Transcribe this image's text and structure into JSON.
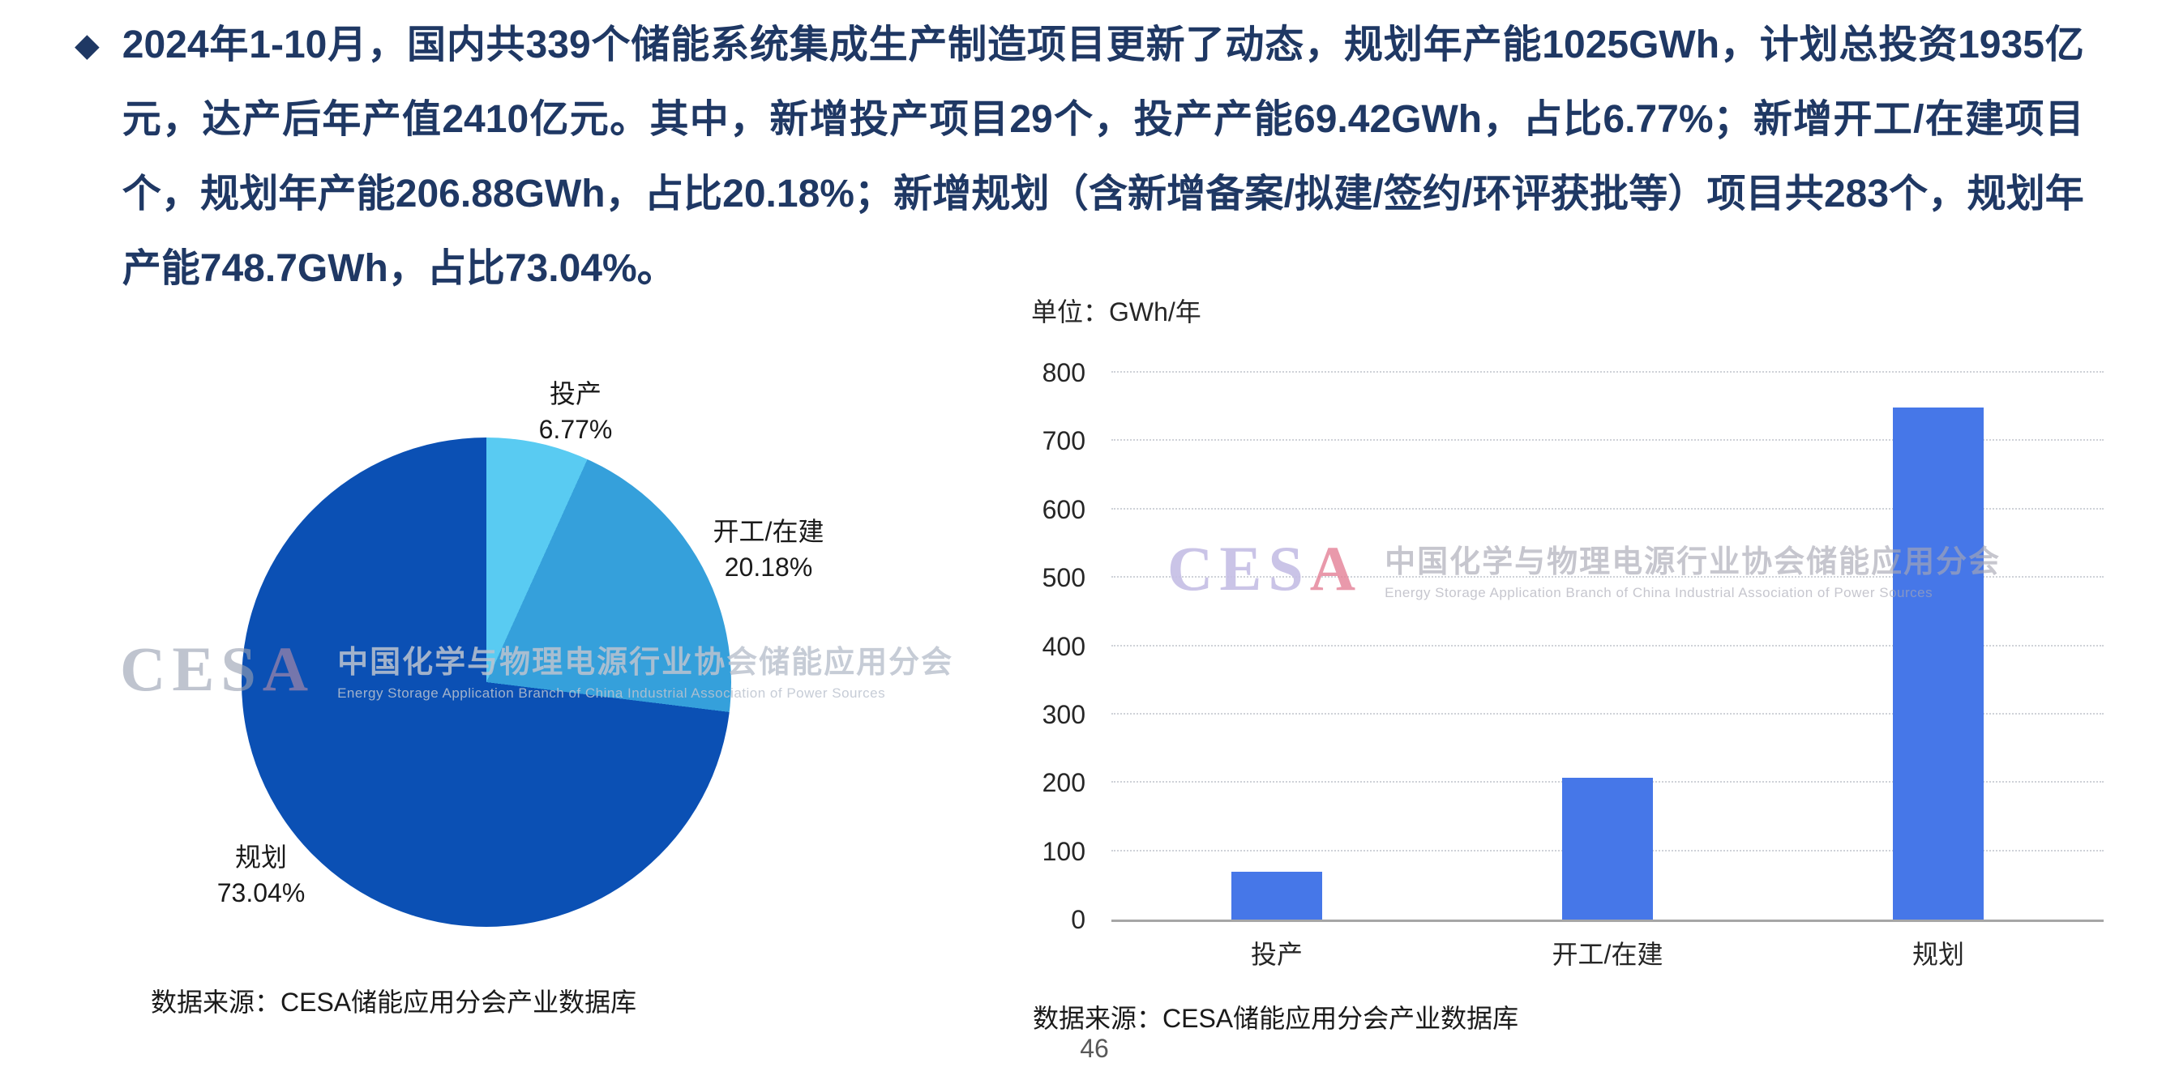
{
  "header": {
    "bullet": "◆",
    "text": "2024年1-10月，国内共339个储能系统集成生产制造项目更新了动态，规划年产能1025GWh，计划总投资1935亿元，达产后年产值2410亿元。其中，新增投产项目29个，投产产能69.42GWh，占比6.77%；新增开工/在建项目个，规划年产能206.88GWh，占比20.18%；新增规划（含新增备案/拟建/签约/环评获批等）项目共283个，规划年产能748.7GWh，占比73.04%。"
  },
  "pie_chart": {
    "callouts": [
      {
        "label": "投产",
        "percent": "6.77%"
      },
      {
        "label": "开工/在建",
        "percent": "20.18%"
      },
      {
        "label": "规划",
        "percent": "73.04%"
      }
    ],
    "source": "数据来源：CESA储能应用分会产业数据库"
  },
  "bar_chart": {
    "unit_label": "单位：GWh/年",
    "source": "数据来源：CESA储能应用分会产业数据库"
  },
  "watermark": {
    "logo_prefix": "CES",
    "logo_suffix": "A",
    "cn": "中国化学与物理电源行业协会储能应用分会",
    "en": "Energy Storage Application Branch of China Industrial Association of Power Sources"
  },
  "footer": {
    "page_number": "46"
  },
  "colors": {
    "headline": "#1F3864",
    "pie_slices": [
      "#59CBF2",
      "#35A0DB",
      "#0B50B4"
    ],
    "bar": "#4677E8",
    "axis": "#a6a6a6",
    "gridline": "#cfd2d8"
  },
  "chart_data": [
    {
      "type": "pie",
      "labels": [
        "投产",
        "开工/在建",
        "规划"
      ],
      "values": [
        6.77,
        20.18,
        73.04
      ],
      "unit": "%",
      "colors": [
        "#59CBF2",
        "#35A0DB",
        "#0B50B4"
      ],
      "start_angle": "top",
      "direction": "clockwise",
      "legend": "outside callout labels",
      "source": "数据来源：CESA储能应用分会产业数据库"
    },
    {
      "type": "bar",
      "title": "单位：GWh/年",
      "categories": [
        "投产",
        "开工/在建",
        "规划"
      ],
      "values": [
        69.42,
        206.88,
        748.7
      ],
      "xlabel": "",
      "ylabel": "GWh/年",
      "ylim": [
        0,
        800
      ],
      "ytick_step": 100,
      "bar_color": "#4677E8",
      "grid": "dotted horizontal gridlines",
      "legend": "none",
      "source": "数据来源：CESA储能应用分会产业数据库"
    }
  ]
}
